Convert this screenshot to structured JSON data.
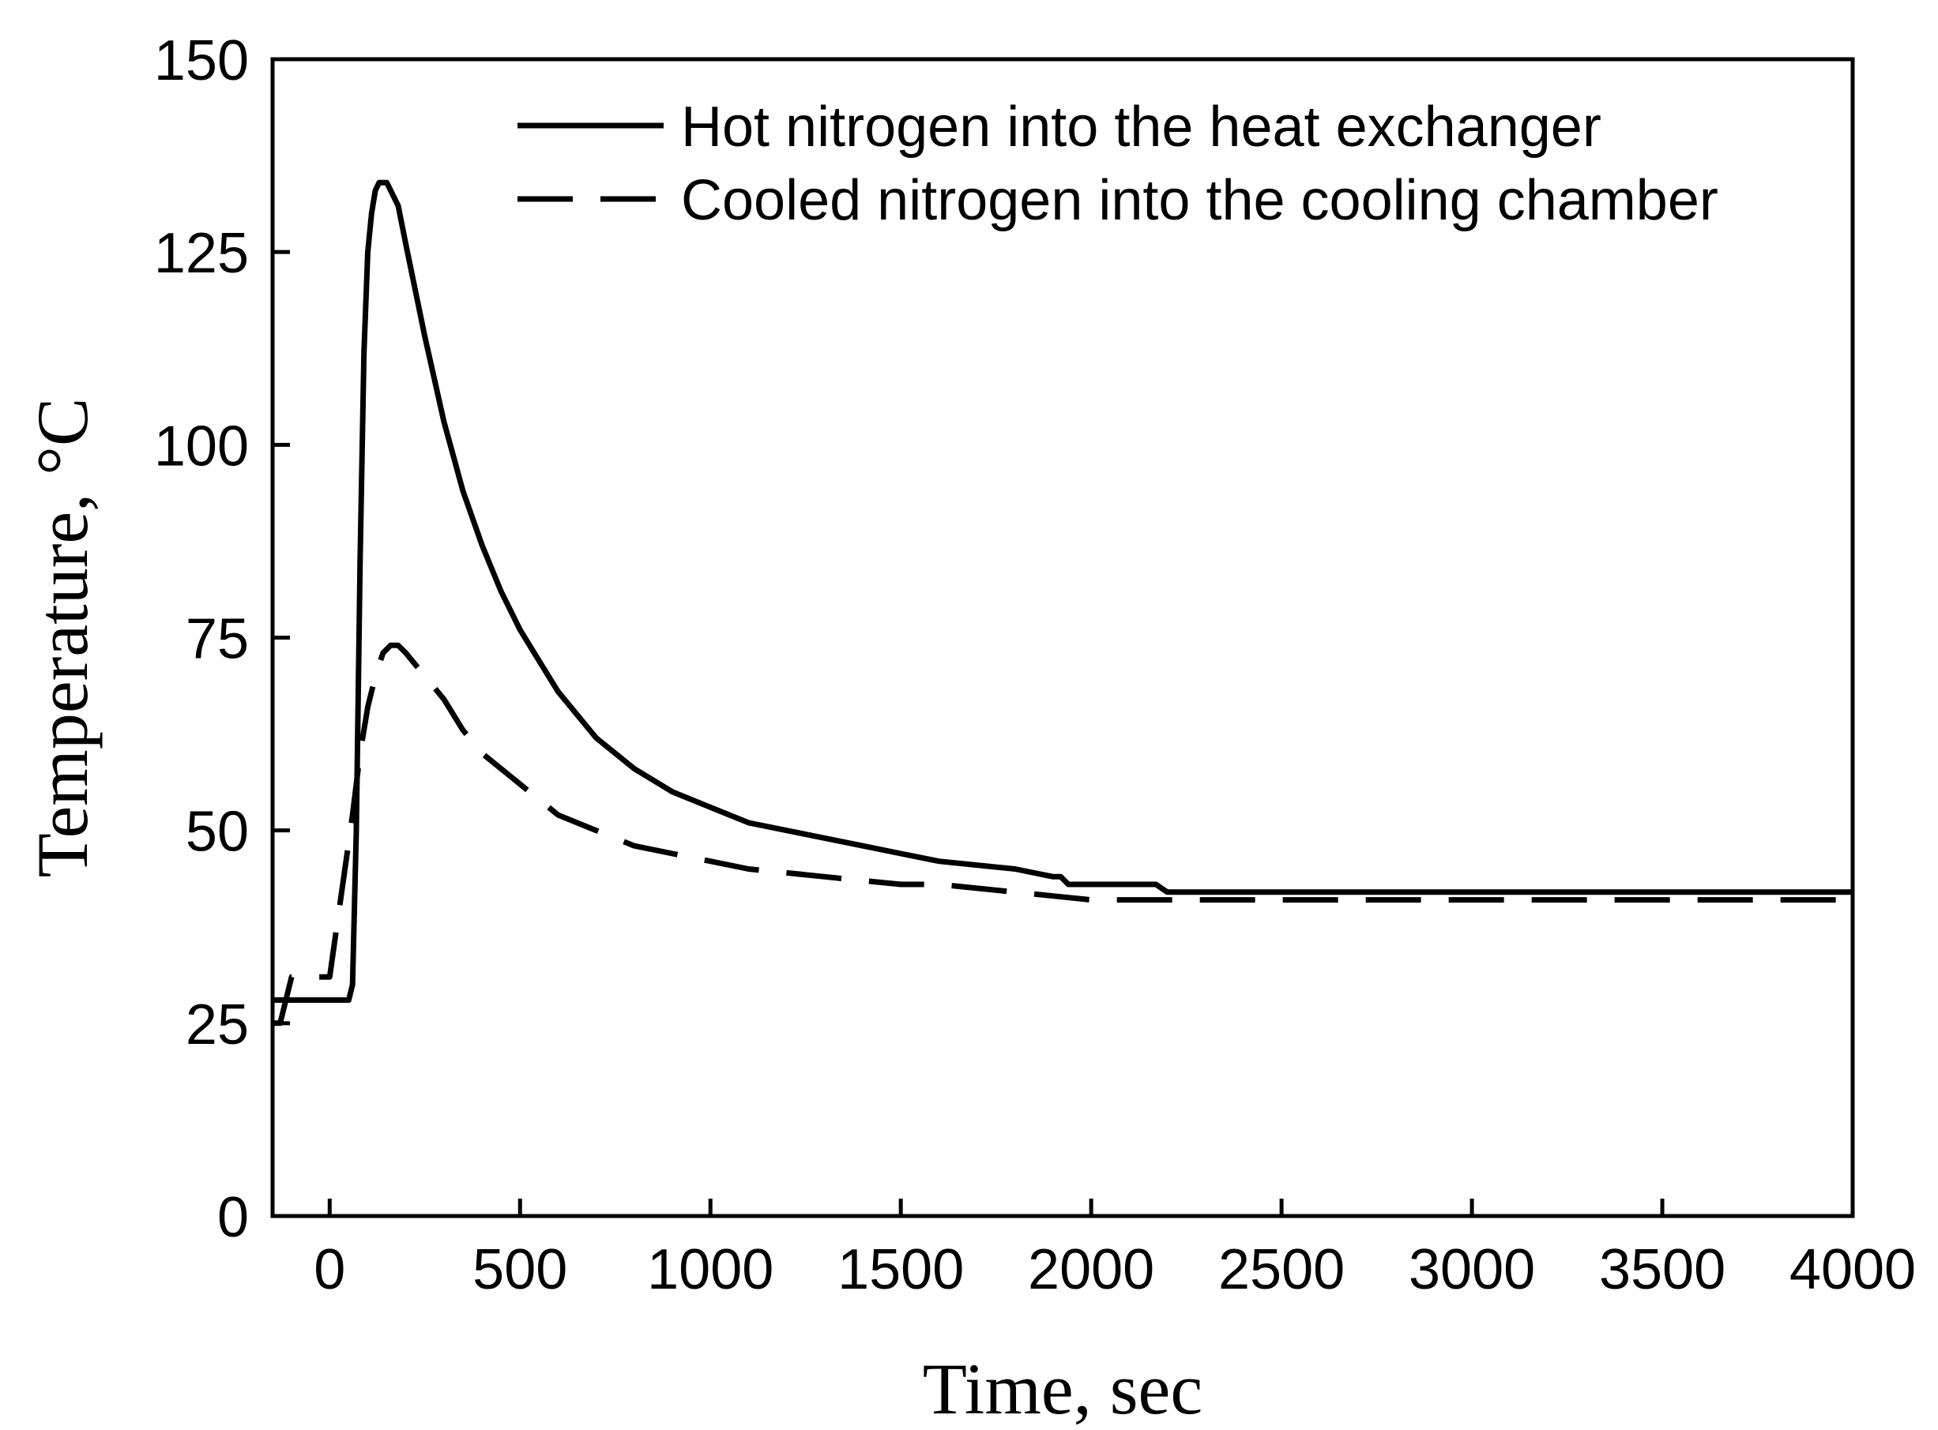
{
  "chart_data": {
    "type": "line",
    "title": "",
    "xlabel": "Time, sec",
    "ylabel": "Temperature, °C",
    "xlim": [
      -150,
      4000
    ],
    "ylim": [
      0,
      150
    ],
    "x_ticks": [
      "0",
      "500",
      "1000",
      "1500",
      "2000",
      "2500",
      "3000",
      "3500",
      "4000"
    ],
    "y_ticks": [
      "0",
      "25",
      "50",
      "75",
      "100",
      "125",
      "150"
    ],
    "legend_position": "top-right",
    "grid": false,
    "series": [
      {
        "name": "Hot nitrogen into the heat exchanger",
        "style": "solid",
        "x": [
          -150,
          -100,
          -50,
          0,
          30,
          50,
          60,
          70,
          80,
          90,
          100,
          110,
          120,
          130,
          140,
          150,
          160,
          180,
          200,
          250,
          300,
          350,
          400,
          450,
          500,
          550,
          600,
          700,
          800,
          900,
          1000,
          1100,
          1200,
          1300,
          1400,
          1500,
          1600,
          1700,
          1800,
          1900,
          1920,
          1940,
          2000,
          2100,
          2170,
          2200,
          2500,
          3000,
          3500,
          4000
        ],
        "y": [
          28,
          28,
          28,
          28,
          28,
          28,
          30,
          50,
          85,
          112,
          125,
          130,
          133,
          134,
          134,
          134,
          133,
          131,
          126,
          114,
          103,
          94,
          87,
          81,
          76,
          72,
          68,
          62,
          58,
          55,
          53,
          51,
          50,
          49,
          48,
          47,
          46,
          45.5,
          45,
          44,
          44,
          43,
          43,
          43,
          43,
          42,
          42,
          42,
          42,
          42
        ]
      },
      {
        "name": "Cooled nitrogen into the cooling chamber",
        "style": "dashed",
        "x": [
          -150,
          -130,
          -100,
          -50,
          0,
          20,
          40,
          60,
          80,
          100,
          120,
          140,
          160,
          180,
          200,
          250,
          300,
          350,
          400,
          450,
          500,
          600,
          700,
          800,
          900,
          1000,
          1100,
          1200,
          1300,
          1400,
          1500,
          1600,
          1700,
          1800,
          1900,
          2000,
          2500,
          3000,
          3500,
          4000
        ],
        "y": [
          25,
          25,
          31,
          31,
          31,
          38,
          45,
          52,
          60,
          66,
          70,
          73,
          74,
          74,
          73,
          70,
          67,
          63,
          60,
          58,
          56,
          52,
          50,
          48,
          47,
          46,
          45,
          44.5,
          44,
          43.5,
          43,
          43,
          42.5,
          42,
          41.5,
          41,
          41,
          41,
          41,
          41
        ]
      }
    ]
  }
}
